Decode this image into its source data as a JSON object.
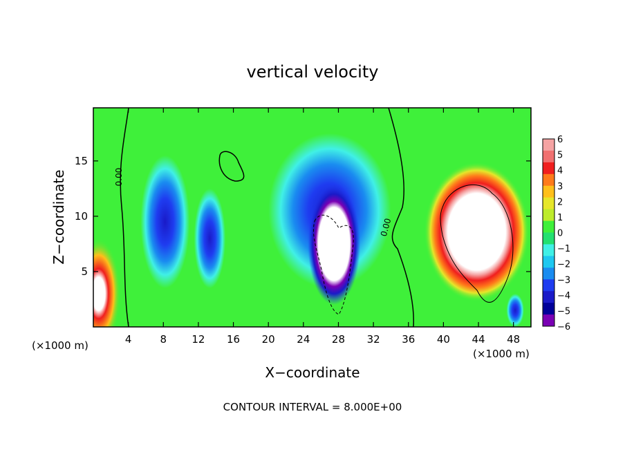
{
  "chart_data": {
    "type": "heatmap",
    "title": "vertical velocity",
    "xlabel": "X−coordinate",
    "ylabel": "Z−coordinate",
    "x_unit": "(×1000 m)",
    "xlim": [
      0,
      50
    ],
    "ylim": [
      0,
      19.8
    ],
    "x_ticks": [
      4,
      8,
      12,
      16,
      20,
      24,
      28,
      32,
      36,
      40,
      44,
      48
    ],
    "y_ticks": [
      5,
      10,
      15
    ],
    "contour_label": "0.00",
    "footer": "CONTOUR INTERVAL = 8.000E+00",
    "colorbar": {
      "levels": [
        6,
        5,
        4,
        3,
        2,
        1,
        0,
        -1,
        -2,
        -3,
        -4,
        -5,
        -6
      ],
      "colors": [
        "#f5a3a3",
        "#f07070",
        "#f01e1e",
        "#ff7a1a",
        "#ffbf1a",
        "#e6e62a",
        "#bdeb2c",
        "#3ff03a",
        "#22e070",
        "#40f0e6",
        "#1ec8f0",
        "#1a8cf0",
        "#1e3cf0",
        "#1a1ac8",
        "#000099",
        "#7a00b4"
      ]
    },
    "features": [
      {
        "kind": "updraft_core",
        "x": 43.8,
        "z": 8.6,
        "rx": 6.0,
        "rz": 6.3,
        "peak": 10
      },
      {
        "kind": "updraft_core",
        "x": 27.5,
        "z": 7.5,
        "rx": 3.0,
        "rz": 5.5,
        "peak": 10
      },
      {
        "kind": "updraft_edge",
        "x": 0.6,
        "z": 3.0,
        "rx": 2.5,
        "rz": 5.0,
        "peak": 9
      },
      {
        "kind": "downdraft",
        "x": 27.0,
        "z": 10.5,
        "rx": 7.0,
        "rz": 7.0,
        "peak": -6
      },
      {
        "kind": "downdraft",
        "x": 8.2,
        "z": 9.5,
        "rx": 2.8,
        "rz": 6.0,
        "peak": -5.5
      },
      {
        "kind": "downdraft",
        "x": 13.3,
        "z": 8.0,
        "rx": 1.8,
        "rz": 4.5,
        "peak": -4.5
      },
      {
        "kind": "downdraft",
        "x": 48.2,
        "z": 1.5,
        "rx": 1.0,
        "rz": 1.5,
        "peak": -4
      }
    ]
  }
}
